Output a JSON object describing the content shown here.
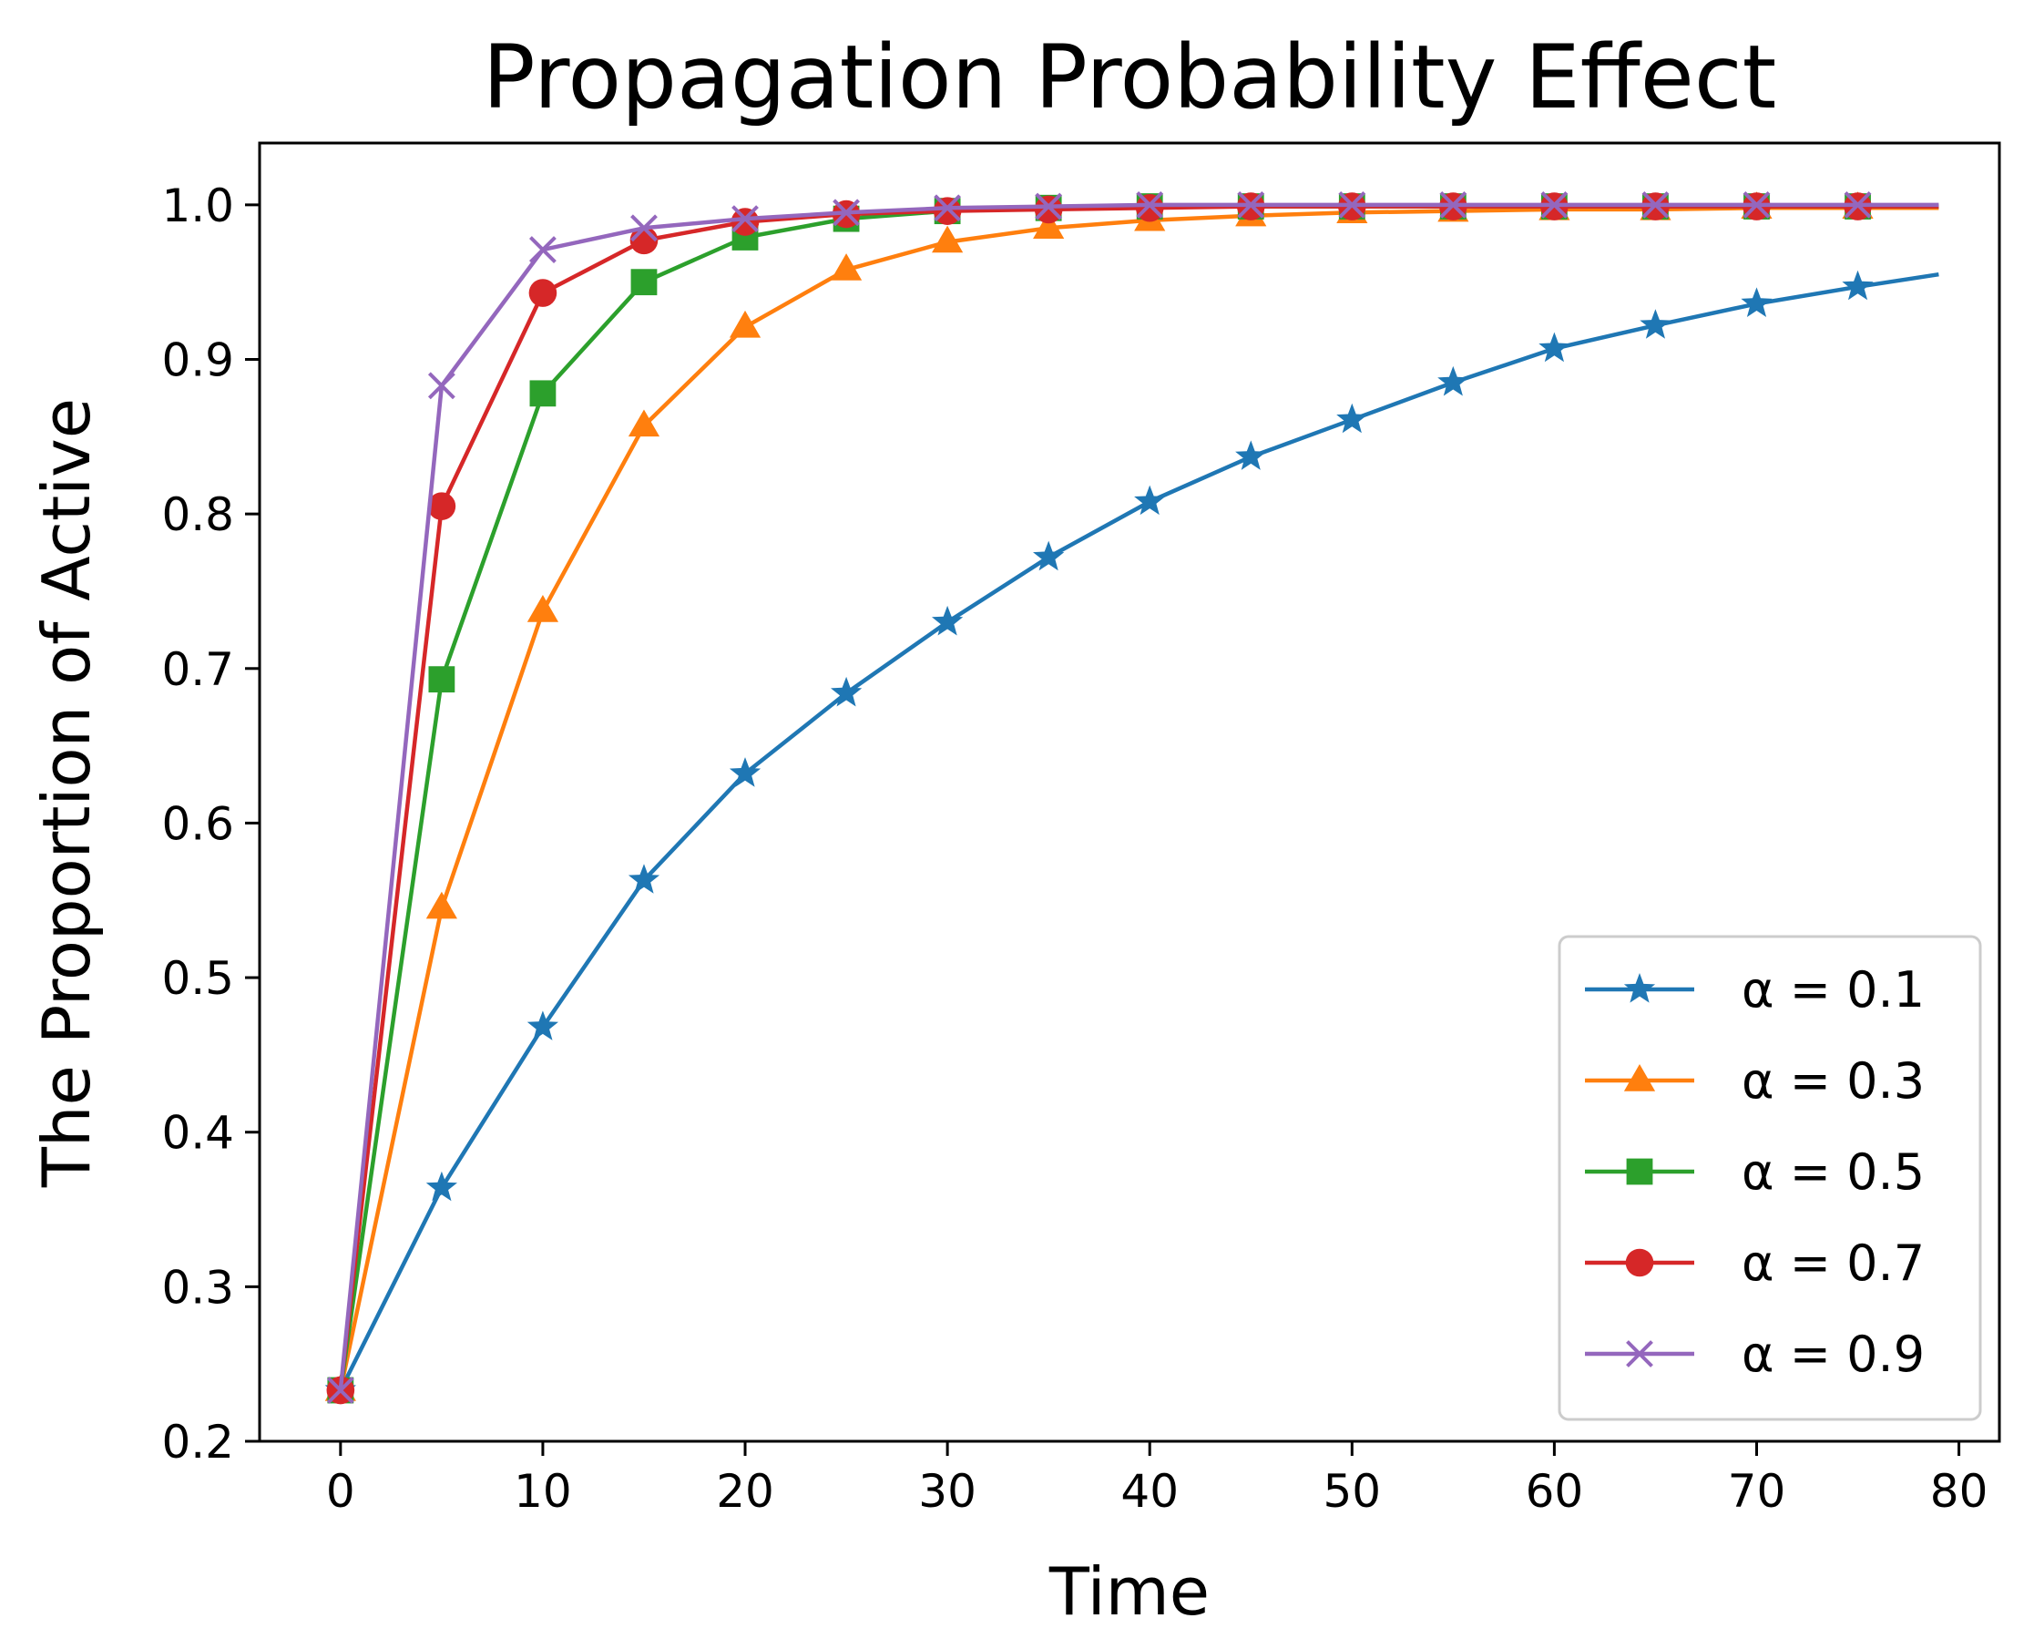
{
  "chart_data": {
    "type": "line",
    "title": "Propagation Probability Effect",
    "xlabel": "Time",
    "ylabel": "The Proportion of Active",
    "xlim": [
      -4,
      82
    ],
    "ylim": [
      0.2,
      1.04
    ],
    "xticks": [
      0,
      10,
      20,
      30,
      40,
      50,
      60,
      70,
      80
    ],
    "xtick_labels": [
      "0",
      "10",
      "20",
      "30",
      "40",
      "50",
      "60",
      "70",
      "80"
    ],
    "yticks": [
      0.2,
      0.3,
      0.4,
      0.5,
      0.6,
      0.7,
      0.8,
      0.9,
      1.0
    ],
    "ytick_labels": [
      "0.2",
      "0.3",
      "0.4",
      "0.5",
      "0.6",
      "0.7",
      "0.8",
      "0.9",
      "1.0"
    ],
    "grid": false,
    "legend_position": "lower-right",
    "markers_x": [
      0,
      5,
      10,
      15,
      20,
      25,
      30,
      35,
      40,
      45,
      50,
      55,
      60,
      65,
      70,
      75
    ],
    "series": [
      {
        "name": "α = 0.1",
        "color": "#1f77b4",
        "marker": "star",
        "x": [
          0,
          5,
          10,
          15,
          20,
          25,
          30,
          35,
          40,
          45,
          50,
          55,
          60,
          65,
          70,
          75,
          79
        ],
        "values": [
          0.233,
          0.364,
          0.468,
          0.563,
          0.632,
          0.684,
          0.73,
          0.772,
          0.808,
          0.837,
          0.861,
          0.885,
          0.907,
          0.922,
          0.936,
          0.947,
          0.955
        ]
      },
      {
        "name": "α = 0.3",
        "color": "#ff7f0e",
        "marker": "triangle",
        "x": [
          0,
          5,
          10,
          15,
          20,
          25,
          30,
          35,
          40,
          45,
          50,
          55,
          60,
          65,
          70,
          75,
          79
        ],
        "values": [
          0.233,
          0.545,
          0.737,
          0.857,
          0.921,
          0.958,
          0.976,
          0.985,
          0.99,
          0.993,
          0.995,
          0.996,
          0.997,
          0.997,
          0.998,
          0.998,
          0.998
        ]
      },
      {
        "name": "α = 0.5",
        "color": "#2ca02c",
        "marker": "square",
        "x": [
          0,
          5,
          10,
          15,
          20,
          25,
          30,
          35,
          40,
          45,
          50,
          55,
          60,
          65,
          70,
          75,
          79
        ],
        "values": [
          0.233,
          0.693,
          0.878,
          0.95,
          0.979,
          0.991,
          0.996,
          0.998,
          0.999,
          0.999,
          0.999,
          0.999,
          0.999,
          0.999,
          0.999,
          0.999,
          0.999
        ]
      },
      {
        "name": "α = 0.7",
        "color": "#d62728",
        "marker": "circle",
        "x": [
          0,
          5,
          10,
          15,
          20,
          25,
          30,
          35,
          40,
          45,
          50,
          55,
          60,
          65,
          70,
          75,
          79
        ],
        "values": [
          0.233,
          0.805,
          0.943,
          0.977,
          0.989,
          0.994,
          0.996,
          0.997,
          0.998,
          0.999,
          0.999,
          0.999,
          0.999,
          0.999,
          0.999,
          0.999,
          0.999
        ]
      },
      {
        "name": "α = 0.9",
        "color": "#9467bd",
        "marker": "x",
        "x": [
          0,
          5,
          10,
          15,
          20,
          25,
          30,
          35,
          40,
          45,
          50,
          55,
          60,
          65,
          70,
          75,
          79
        ],
        "values": [
          0.233,
          0.883,
          0.971,
          0.985,
          0.991,
          0.995,
          0.998,
          0.999,
          1.0,
          1.0,
          1.0,
          1.0,
          1.0,
          1.0,
          1.0,
          1.0,
          1.0
        ]
      }
    ]
  }
}
